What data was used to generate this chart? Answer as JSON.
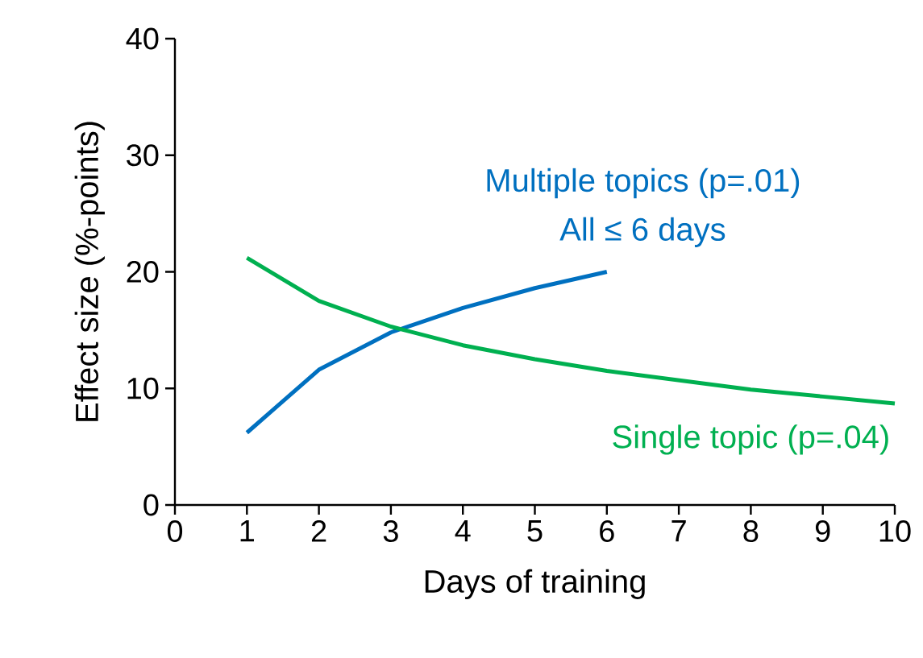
{
  "chart_data": {
    "type": "line",
    "xlabel": "Days of training",
    "ylabel": "Effect size (%-points)",
    "x": [
      1,
      2,
      3,
      4,
      5,
      6,
      7,
      8,
      9,
      10
    ],
    "series": [
      {
        "name": "Multiple topics (p=.01)",
        "color": "#0070c0",
        "values": [
          6.2,
          11.6,
          14.8,
          16.9,
          18.6,
          20.0,
          null,
          null,
          null,
          null
        ]
      },
      {
        "name": "Single topic (p=.04)",
        "color": "#00b050",
        "values": [
          21.2,
          17.5,
          15.3,
          13.7,
          12.5,
          11.5,
          10.7,
          9.9,
          9.3,
          8.7
        ]
      }
    ],
    "annotations": [
      "All ≤ 6 days"
    ],
    "xlim": [
      0,
      10
    ],
    "xticks": [
      0,
      1,
      2,
      3,
      4,
      5,
      6,
      7,
      8,
      9,
      10
    ],
    "ylim": [
      0,
      40
    ],
    "yticks": [
      0,
      10,
      20,
      30,
      40
    ],
    "grid": false,
    "legend": false,
    "marker": "none",
    "line_style": "solid"
  }
}
